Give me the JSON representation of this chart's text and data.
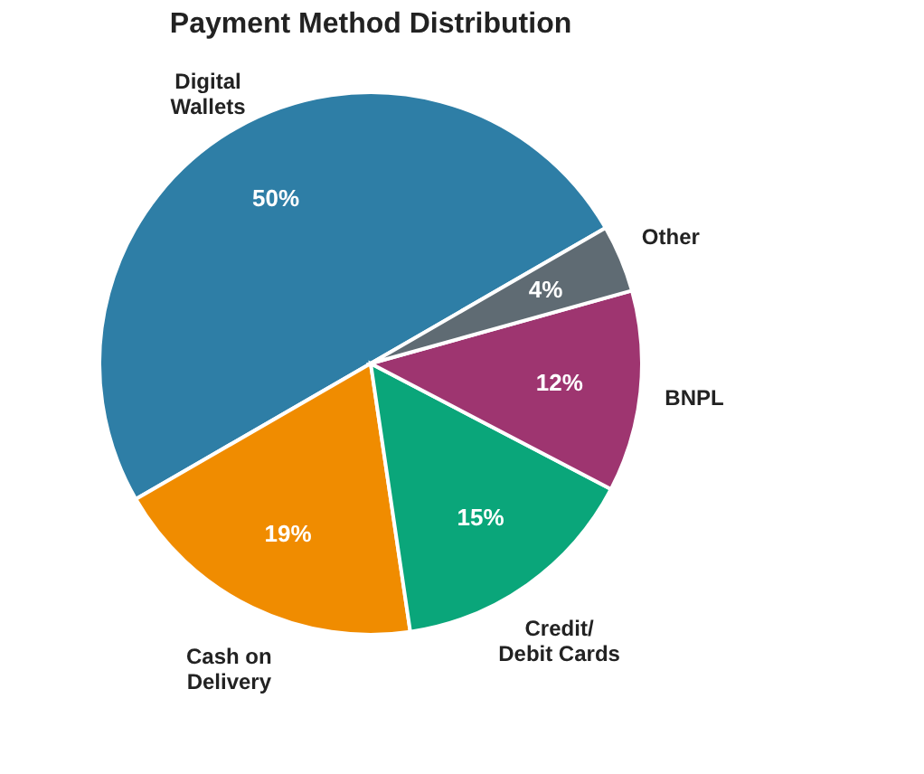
{
  "chart_data": {
    "type": "pie",
    "title": "Payment Method Distribution",
    "categories": [
      "Digital\nWallets",
      "Cash on\nDelivery",
      "Credit/\nDebit Cards",
      "BNPL",
      "Other"
    ],
    "values": [
      50,
      19,
      15,
      12,
      4
    ],
    "value_labels": [
      "50%",
      "19%",
      "15%",
      "12%",
      "4%"
    ],
    "colors": [
      "#2e7ea6",
      "#f08c00",
      "#0aa67a",
      "#9e3570",
      "#5f6b73"
    ],
    "legend": false
  }
}
